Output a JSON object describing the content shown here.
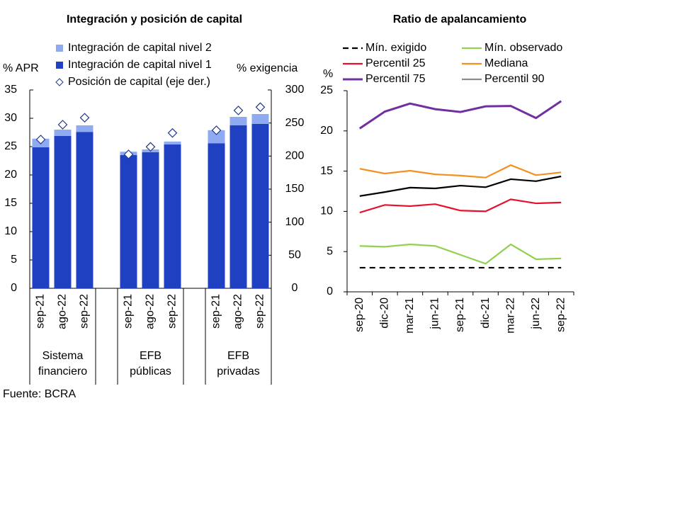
{
  "source": "Fuente: BCRA",
  "chart_data": [
    {
      "type": "bar",
      "title": "Integración y posición de capital",
      "ylabel": "% APR",
      "y2label": "% exigencia",
      "categories": [
        "sep-21",
        "ago-22",
        "sep-22",
        "sep-21",
        "ago-22",
        "sep-22",
        "sep-21",
        "ago-22",
        "sep-22"
      ],
      "groups": [
        "Sistema financiero",
        "EFB públicas",
        "EFB privadas"
      ],
      "stacked": true,
      "series": [
        {
          "name": "Integración de capital nivel 2",
          "color": "#8eaaf0",
          "values": [
            1.5,
            1.1,
            1.15,
            0.6,
            0.5,
            0.5,
            2.3,
            1.5,
            1.75
          ]
        },
        {
          "name": "Integración de capital nivel 1",
          "color": "#1f40c0",
          "values": [
            24.9,
            26.9,
            27.6,
            23.5,
            24.0,
            25.4,
            25.6,
            28.75,
            29.0
          ]
        },
        {
          "name": "Posición de capital (eje der.)",
          "color": "#1f3a8a",
          "marker": "diamond",
          "axis": "y2",
          "values": [
            225,
            247.5,
            258,
            202.5,
            214,
            235,
            239,
            269,
            274
          ]
        }
      ],
      "ylim": [
        0,
        35
      ],
      "yticks": [
        0,
        5,
        10,
        15,
        20,
        25,
        30,
        35
      ],
      "y2lim": [
        0,
        300
      ],
      "y2ticks": [
        0,
        50,
        100,
        150,
        200,
        250,
        300
      ]
    },
    {
      "type": "line",
      "title": "Ratio de apalancamiento",
      "ylabel": "%",
      "categories": [
        "sep-20",
        "dic-20",
        "mar-21",
        "jun-21",
        "sep-21",
        "dic-21",
        "mar-22",
        "jun-22",
        "sep-22"
      ],
      "series": [
        {
          "name": "Mín. exigido",
          "color": "#000000",
          "dashed": true,
          "values": [
            3,
            3,
            3,
            3,
            3,
            3,
            3,
            3,
            3
          ]
        },
        {
          "name": "Mín. observado",
          "color": "#92d050",
          "values": [
            5.7,
            5.6,
            5.9,
            5.7,
            4.6,
            3.5,
            5.9,
            4.05,
            4.15
          ]
        },
        {
          "name": "Percentil 25",
          "color": "#e8112d",
          "values": [
            9.85,
            10.8,
            10.65,
            10.9,
            10.1,
            10.0,
            11.5,
            11.0,
            11.1
          ]
        },
        {
          "name": "Mediana",
          "color": "#f39020",
          "values": [
            15.3,
            14.7,
            15.05,
            14.6,
            14.45,
            14.2,
            15.75,
            14.5,
            14.85
          ]
        },
        {
          "name": "Percentil 75",
          "color": "#7030a0",
          "values": [
            20.3,
            22.4,
            23.4,
            22.7,
            22.35,
            23.05,
            23.1,
            21.6,
            23.7
          ]
        },
        {
          "name": "Percentil 90",
          "color": "#8c8c8c",
          "values": [
            null,
            null,
            null,
            null,
            null,
            null,
            null,
            null,
            null
          ]
        },
        {
          "color": "#000000",
          "values": [
            11.9,
            12.4,
            12.95,
            12.85,
            13.2,
            13.0,
            14.0,
            13.75,
            14.35
          ]
        }
      ],
      "ylim": [
        0,
        25
      ],
      "yticks": [
        0,
        5,
        10,
        15,
        20,
        25
      ]
    }
  ]
}
